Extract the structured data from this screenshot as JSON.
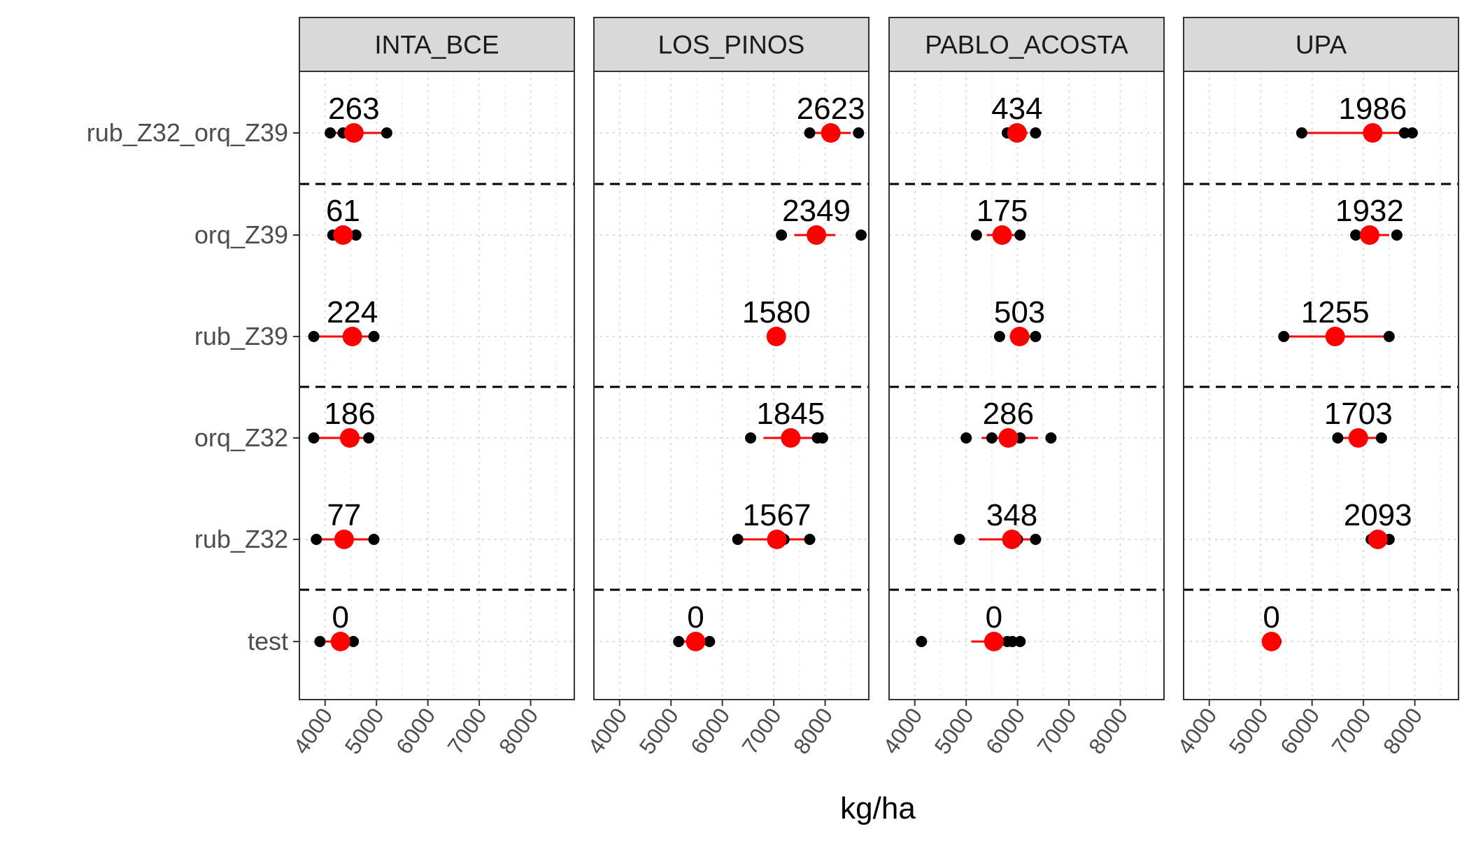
{
  "chart_data": {
    "type": "scatter",
    "xlabel": "kg/ha",
    "xlim": [
      3500,
      8850
    ],
    "x_ticks": [
      "4000",
      "5000",
      "6000",
      "7000",
      "8000"
    ],
    "grid": true,
    "categories": [
      "rub_Z32_orq_Z39",
      "orq_Z39",
      "rub_Z39",
      "orq_Z32",
      "rub_Z32",
      "test"
    ],
    "category_labels": [
      "rub_Z32_orq_Z39",
      "orq_Z39",
      "rub_Z39",
      "orq_Z32",
      "rub_Z32",
      "test"
    ],
    "group_separators_after": [
      0,
      2,
      4
    ],
    "colors": {
      "points": "#000000",
      "mean": "#ff0000",
      "strip": "#d9d9d9"
    },
    "panels": [
      {
        "name": "INTA_BCE",
        "rows": [
          {
            "category": "rub_Z32_orq_Z39",
            "points": [
              4100,
              4350,
              5200
            ],
            "mean": 4560,
            "range": [
              4100,
              5200
            ],
            "label": "263"
          },
          {
            "category": "orq_Z39",
            "points": [
              4150,
              4300,
              4600
            ],
            "mean": 4350,
            "range": [
              4200,
              4500
            ],
            "label": "61"
          },
          {
            "category": "rub_Z39",
            "points": [
              3780,
              4500,
              4950
            ],
            "mean": 4530,
            "range": [
              3780,
              4950
            ],
            "label": "224"
          },
          {
            "category": "orq_Z32",
            "points": [
              3780,
              4400,
              4850
            ],
            "mean": 4480,
            "range": [
              3780,
              4850
            ],
            "label": "186"
          },
          {
            "category": "rub_Z32",
            "points": [
              3830,
              4350,
              4950
            ],
            "mean": 4370,
            "range": [
              3830,
              4950
            ],
            "label": "77"
          },
          {
            "category": "test",
            "points": [
              3900,
              4400,
              4550
            ],
            "mean": 4300,
            "range": [
              4000,
              4550
            ],
            "label": "0"
          }
        ]
      },
      {
        "name": "LOS_PINOS",
        "rows": [
          {
            "category": "rub_Z32_orq_Z39",
            "points": [
              7700,
              8100,
              8650
            ],
            "mean": 8110,
            "range": [
              7700,
              8500
            ],
            "label": "2623"
          },
          {
            "category": "orq_Z39",
            "points": [
              7150,
              7800,
              8700
            ],
            "mean": 7830,
            "range": [
              7400,
              8200
            ],
            "label": "2349"
          },
          {
            "category": "rub_Z39",
            "points": [
              6980,
              7050,
              7080
            ],
            "mean": 7050,
            "range": [
              6980,
              7080
            ],
            "label": "1580"
          },
          {
            "category": "orq_Z32",
            "points": [
              6550,
              7300,
              7850,
              7950
            ],
            "mean": 7330,
            "range": [
              6800,
              7900
            ],
            "label": "1845"
          },
          {
            "category": "rub_Z32",
            "points": [
              6300,
              7100,
              7200,
              7700
            ],
            "mean": 7060,
            "range": [
              6300,
              7700
            ],
            "label": "1567"
          },
          {
            "category": "test",
            "points": [
              5150,
              5450,
              5750
            ],
            "mean": 5480,
            "range": [
              5150,
              5750
            ],
            "label": "0"
          }
        ]
      },
      {
        "name": "PABLO_ACOSTA",
        "rows": [
          {
            "category": "rub_Z32_orq_Z39",
            "points": [
              5800,
              6000,
              6350
            ],
            "mean": 5990,
            "range": [
              5800,
              6200
            ],
            "label": "434"
          },
          {
            "category": "orq_Z39",
            "points": [
              5200,
              5700,
              6050
            ],
            "mean": 5700,
            "range": [
              5400,
              6050
            ],
            "label": "175"
          },
          {
            "category": "rub_Z39",
            "points": [
              5650,
              6100,
              6350
            ],
            "mean": 6040,
            "range": [
              5850,
              6250
            ],
            "label": "503"
          },
          {
            "category": "orq_Z32",
            "points": [
              5000,
              5500,
              6050,
              6650
            ],
            "mean": 5820,
            "range": [
              5300,
              6400
            ],
            "label": "286"
          },
          {
            "category": "rub_Z32",
            "points": [
              4870,
              6000,
              6350
            ],
            "mean": 5890,
            "range": [
              5250,
              6300
            ],
            "label": "348"
          },
          {
            "category": "test",
            "points": [
              4130,
              5800,
              5900,
              6050
            ],
            "mean": 5540,
            "range": [
              5100,
              6000
            ],
            "label": "0"
          }
        ]
      },
      {
        "name": "UPA",
        "rows": [
          {
            "category": "rub_Z32_orq_Z39",
            "points": [
              5800,
              7200,
              7800,
              7950
            ],
            "mean": 7180,
            "range": [
              5800,
              7900
            ],
            "label": "1986"
          },
          {
            "category": "orq_Z39",
            "points": [
              6850,
              7050,
              7650
            ],
            "mean": 7120,
            "range": [
              6900,
              7500
            ],
            "label": "1932"
          },
          {
            "category": "rub_Z39",
            "points": [
              5450,
              6500,
              7500
            ],
            "mean": 6450,
            "range": [
              5450,
              7500
            ],
            "label": "1255"
          },
          {
            "category": "orq_Z32",
            "points": [
              6500,
              6950,
              7350
            ],
            "mean": 6900,
            "range": [
              6550,
              7250
            ],
            "label": "1703"
          },
          {
            "category": "rub_Z32",
            "points": [
              7150,
              7300,
              7500
            ],
            "mean": 7280,
            "range": [
              7150,
              7450
            ],
            "label": "2093"
          },
          {
            "category": "test",
            "points": [
              5150,
              5250,
              5300
            ],
            "mean": 5210,
            "range": [
              5150,
              5300
            ],
            "label": "0"
          }
        ]
      }
    ]
  }
}
